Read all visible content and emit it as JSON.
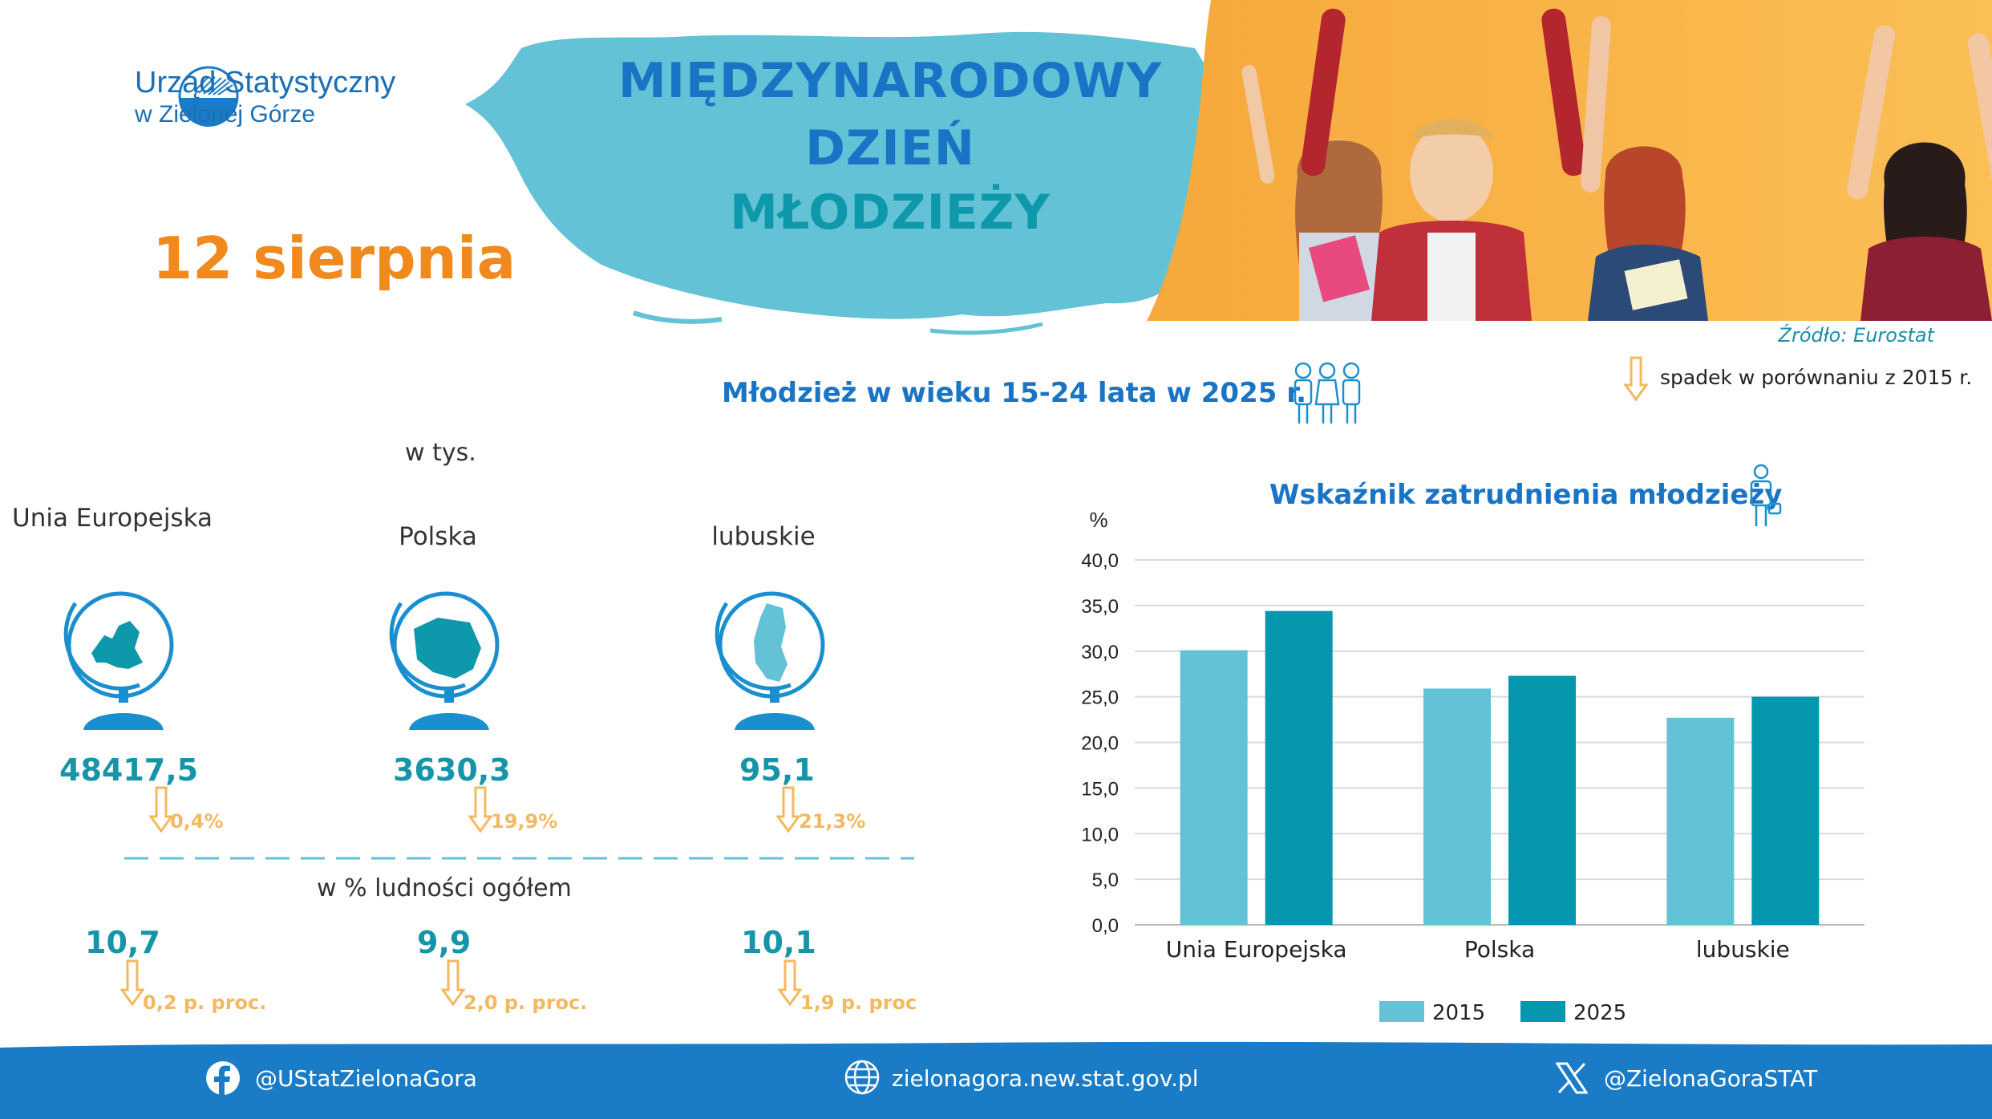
{
  "header": {
    "org_line1": "Urząd Statystyczny",
    "org_line2": "w Zielonej Górze",
    "title_line1": "MIĘDZYNARODOWY",
    "title_line2": "DZIEŃ",
    "title_line3": "MŁODZIEŻY",
    "date": "12 sierpnia",
    "source": "Źródło: Eurostat"
  },
  "colors": {
    "accent_blue": "#1a74c6",
    "teal": "#0e98ab",
    "orange": "#f0891e",
    "light_orange": "#f5b860",
    "splash": "#63c2d6",
    "bar_2015": "#63c2d6",
    "bar_2025": "#0597ae",
    "footer": "#1a7cc6"
  },
  "youth": {
    "title": "Młodzież w wieku 15-24 lata w 2025 r.",
    "legend_text": "spadek w porównaniu z 2015 r.",
    "unit_thousands": "w tys.",
    "unit_percent": "w % ludności ogółem",
    "regions": [
      {
        "label": "Unia Europejska",
        "count": "48417,5",
        "count_change": "0,4%",
        "share": "10,7",
        "share_change": "0,2 p. proc."
      },
      {
        "label": "Polska",
        "count": "3630,3",
        "count_change": "19,9%",
        "share": "9,9",
        "share_change": "2,0 p. proc."
      },
      {
        "label": "lubuskie",
        "count": "95,1",
        "count_change": "21,3%",
        "share": "10,1",
        "share_change": "1,9 p. proc"
      }
    ]
  },
  "chart_data": {
    "type": "bar",
    "title": "Wskaźnik zatrudnienia młodzieży",
    "ylabel": "%",
    "xlabel": "",
    "categories": [
      "Unia Europejska",
      "Polska",
      "lubuskie"
    ],
    "series": [
      {
        "name": "2015",
        "values": [
          30.1,
          25.9,
          22.7
        ]
      },
      {
        "name": "2025",
        "values": [
          34.4,
          27.3,
          25.0
        ]
      }
    ],
    "ylim": [
      0,
      40
    ],
    "yticks": [
      "0,0",
      "5,0",
      "10,0",
      "15,0",
      "20,0",
      "25,0",
      "30,0",
      "35,0",
      "40,0"
    ],
    "grid": true,
    "legend": "bottom"
  },
  "footer": {
    "facebook": "@UStatZielonaGora",
    "website": "zielonagora.new.stat.gov.pl",
    "x": "@ZielonaGoraSTAT"
  },
  "icons": [
    "logo-icon",
    "globe-eu-icon",
    "globe-poland-icon",
    "globe-lubuskie-icon",
    "down-arrow-icon",
    "kids-icon",
    "worker-icon",
    "facebook-icon",
    "globe-web-icon",
    "x-icon"
  ]
}
